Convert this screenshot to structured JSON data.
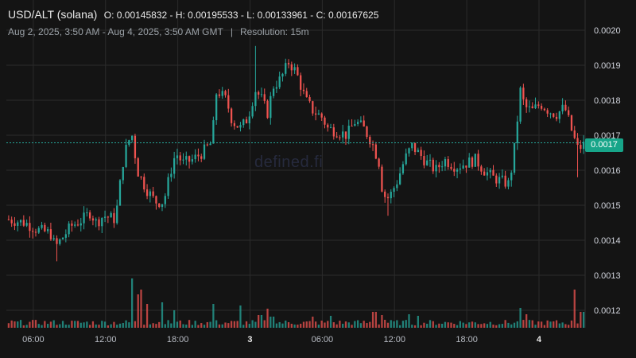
{
  "header": {
    "symbol": "USD/ALT (solana)",
    "ohlc": "O: 0.00145832 - H: 0.00195533 - L: 0.00133961 - C: 0.00167625",
    "range": "Aug 2, 2025, 3:50 AM - Aug 4, 2025, 3:50 AM GMT",
    "separator": "|",
    "resolution": "Resolution: 15m"
  },
  "watermark": "defined.fi",
  "current_price_label": "0.0017",
  "colors": {
    "background": "#141414",
    "up": "#26a69a",
    "down": "#ef5350",
    "grid": "#2b2b2b",
    "price_line": "#26a69a"
  },
  "chart_data": {
    "type": "candlestick",
    "title": "",
    "xlabel": "",
    "ylabel": "",
    "ylim": [
      0.00116,
      0.00206
    ],
    "grid": true,
    "current_price": 0.00167625,
    "y_ticks": [
      "0.0020",
      "0.0019",
      "0.0018",
      "0.0017",
      "0.0016",
      "0.0015",
      "0.0014",
      "0.0013",
      "0.0012"
    ],
    "y_tick_values": [
      0.002,
      0.0019,
      0.0018,
      0.0017,
      0.0016,
      0.0015,
      0.0014,
      0.0013,
      0.0012
    ],
    "x_ticks": [
      {
        "label": "06:00",
        "hour": 2.17
      },
      {
        "label": "12:00",
        "hour": 8.17
      },
      {
        "label": "18:00",
        "hour": 14.17
      },
      {
        "label": "3",
        "hour": 20.17
      },
      {
        "label": "06:00",
        "hour": 26.17
      },
      {
        "label": "12:00",
        "hour": 32.17
      },
      {
        "label": "18:00",
        "hour": 38.17
      },
      {
        "label": "4",
        "hour": 44.17
      }
    ],
    "hours_span": 48,
    "close_anchors": [
      [
        0,
        0.00146
      ],
      [
        1.5,
        0.00145
      ],
      [
        2.5,
        0.00143
      ],
      [
        3.6,
        0.00142
      ],
      [
        4.0,
        0.00138
      ],
      [
        5.3,
        0.00144
      ],
      [
        6.3,
        0.00146
      ],
      [
        6.9,
        0.00148
      ],
      [
        7.4,
        0.00145
      ],
      [
        8.0,
        0.00147
      ],
      [
        9.0,
        0.00146
      ],
      [
        9.6,
        0.00162
      ],
      [
        10.0,
        0.00168
      ],
      [
        10.4,
        0.0017
      ],
      [
        10.8,
        0.0016
      ],
      [
        11.5,
        0.00155
      ],
      [
        12.3,
        0.00151
      ],
      [
        13.0,
        0.00151
      ],
      [
        13.6,
        0.0016
      ],
      [
        14.0,
        0.00165
      ],
      [
        14.6,
        0.00162
      ],
      [
        15.4,
        0.00163
      ],
      [
        16.2,
        0.00165
      ],
      [
        17.0,
        0.00168
      ],
      [
        17.4,
        0.00183
      ],
      [
        18.2,
        0.0018
      ],
      [
        18.7,
        0.00174
      ],
      [
        19.4,
        0.00172
      ],
      [
        20.0,
        0.00175
      ],
      [
        20.6,
        0.00183
      ],
      [
        21.2,
        0.0018
      ],
      [
        21.6,
        0.00176
      ],
      [
        22.1,
        0.00184
      ],
      [
        22.7,
        0.00186
      ],
      [
        23.4,
        0.00191
      ],
      [
        24.0,
        0.00188
      ],
      [
        24.8,
        0.0018
      ],
      [
        25.4,
        0.00177
      ],
      [
        26.2,
        0.00175
      ],
      [
        26.6,
        0.00172
      ],
      [
        27.5,
        0.00171
      ],
      [
        28.2,
        0.0017
      ],
      [
        28.9,
        0.00174
      ],
      [
        29.6,
        0.00172
      ],
      [
        30.3,
        0.00168
      ],
      [
        30.9,
        0.00162
      ],
      [
        31.2,
        0.00153
      ],
      [
        31.7,
        0.00152
      ],
      [
        32.4,
        0.00157
      ],
      [
        33.0,
        0.00163
      ],
      [
        33.6,
        0.00167
      ],
      [
        34.4,
        0.00164
      ],
      [
        34.9,
        0.00162
      ],
      [
        35.6,
        0.0016
      ],
      [
        36.3,
        0.00163
      ],
      [
        37.3,
        0.00161
      ],
      [
        38.1,
        0.00162
      ],
      [
        38.9,
        0.00163
      ],
      [
        39.6,
        0.0016
      ],
      [
        40.3,
        0.00158
      ],
      [
        41.0,
        0.00157
      ],
      [
        41.7,
        0.00156
      ],
      [
        42.2,
        0.00168
      ],
      [
        42.6,
        0.00183
      ],
      [
        43.0,
        0.00178
      ],
      [
        43.6,
        0.00177
      ],
      [
        44.3,
        0.00179
      ],
      [
        45.0,
        0.00177
      ],
      [
        45.6,
        0.00176
      ],
      [
        46.3,
        0.00178
      ],
      [
        47.0,
        0.0017
      ],
      [
        47.4,
        0.00166
      ],
      [
        48.0,
        0.00167625
      ]
    ],
    "volume_spikes": [
      [
        10.4,
        0.62
      ],
      [
        10.9,
        0.42
      ],
      [
        11.2,
        0.48
      ],
      [
        11.6,
        0.3
      ],
      [
        12.8,
        0.32
      ],
      [
        13.9,
        0.22
      ],
      [
        17.1,
        0.3
      ],
      [
        19.4,
        0.28
      ],
      [
        21.0,
        0.16
      ],
      [
        21.6,
        0.24
      ],
      [
        22.0,
        0.14
      ],
      [
        25.3,
        0.14
      ],
      [
        26.9,
        0.15
      ],
      [
        30.5,
        0.2
      ],
      [
        31.1,
        0.16
      ],
      [
        31.4,
        0.1
      ],
      [
        33.3,
        0.17
      ],
      [
        34.1,
        0.15
      ],
      [
        43.1,
        0.17
      ],
      [
        42.7,
        0.25
      ],
      [
        47.1,
        0.48
      ],
      [
        47.7,
        0.2
      ],
      [
        47.9,
        0.2
      ]
    ]
  }
}
